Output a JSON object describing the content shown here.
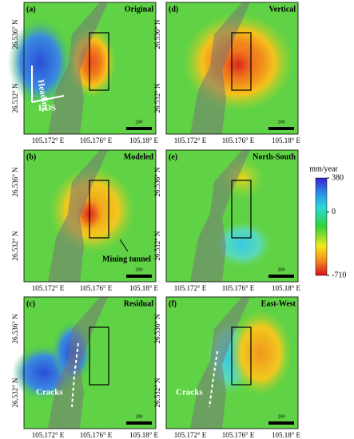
{
  "panels": [
    {
      "letter": "(a)",
      "title": "Original"
    },
    {
      "letter": "(d)",
      "title": "Vertical"
    },
    {
      "letter": "(b)",
      "title": "Modeled"
    },
    {
      "letter": "(e)",
      "title": "North-South"
    },
    {
      "letter": "(c)",
      "title": "Residual"
    },
    {
      "letter": "(f)",
      "title": "East-West"
    }
  ],
  "axes": {
    "yticks": [
      "26.536° N",
      "26.532° N"
    ],
    "xticks": [
      "105.172° E",
      "105.176° E",
      "105.18° E"
    ]
  },
  "scale_bar": "200",
  "annotations": {
    "heading": "Heading",
    "los": "LOS",
    "mining_tunnel": "Mining tunnel",
    "cracks_c": "Cracks",
    "cracks_f": "Cracks"
  },
  "colorbar": {
    "unit": "mm/year",
    "ticks": [
      380,
      0,
      -710
    ],
    "range": [
      -710,
      380
    ]
  }
}
